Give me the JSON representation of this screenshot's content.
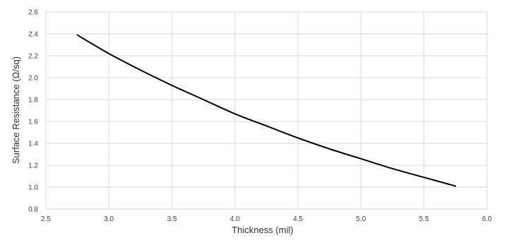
{
  "chart_data": {
    "type": "line",
    "title": "",
    "xlabel": "Thickness (mil)",
    "ylabel": "Surface Resistance (Ω/sq)",
    "xlim": [
      2.5,
      6.0
    ],
    "ylim": [
      0.8,
      2.6
    ],
    "x_ticks": [
      "2.5",
      "3.0",
      "3.5",
      "4.0",
      "4.5",
      "5.0",
      "5.5",
      "6.0"
    ],
    "y_ticks": [
      "0.8",
      "1.0",
      "1.2",
      "1.4",
      "1.6",
      "1.8",
      "2.0",
      "2.2",
      "2.4",
      "2.6"
    ],
    "grid": true,
    "legend": "none",
    "series": [
      {
        "color": "#000000",
        "x": [
          2.75,
          3.0,
          3.25,
          3.5,
          3.75,
          4.0,
          4.25,
          4.5,
          4.75,
          5.0,
          5.25,
          5.5,
          5.75
        ],
        "y": [
          2.39,
          2.22,
          2.07,
          1.93,
          1.8,
          1.67,
          1.56,
          1.45,
          1.35,
          1.26,
          1.17,
          1.09,
          1.01
        ]
      }
    ]
  }
}
